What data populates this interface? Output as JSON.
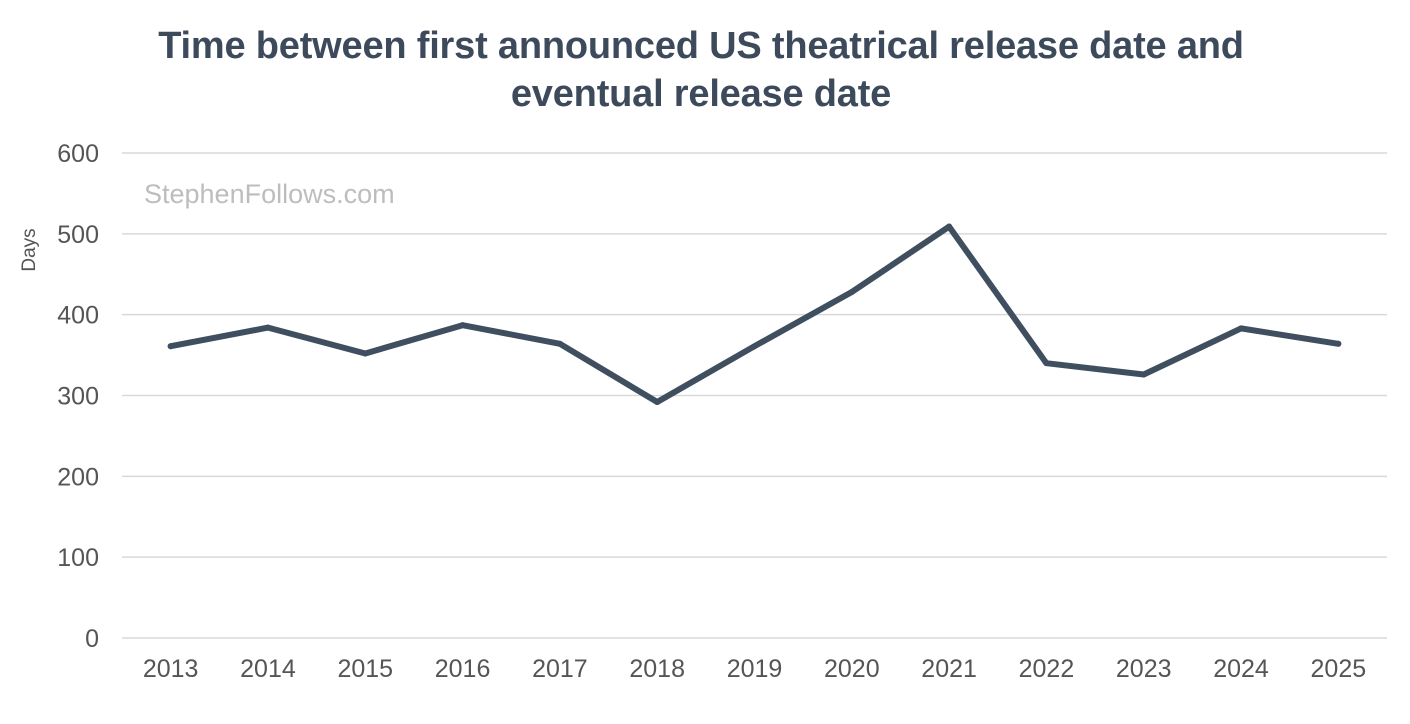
{
  "chart_data": {
    "type": "line",
    "title_lines": [
      "Time between first announced US theatrical release date and",
      "eventual release date"
    ],
    "xlabel": "",
    "ylabel": "Days",
    "categories": [
      "2013",
      "2014",
      "2015",
      "2016",
      "2017",
      "2018",
      "2019",
      "2020",
      "2021",
      "2022",
      "2023",
      "2024",
      "2025"
    ],
    "series": [
      {
        "name": "Days",
        "color": "#3f4f5f",
        "values": [
          361,
          384,
          352,
          387,
          364,
          292,
          361,
          428,
          509,
          340,
          326,
          383,
          364
        ]
      }
    ],
    "ylim": [
      0,
      600
    ],
    "yticks": [
      "0",
      "100",
      "200",
      "300",
      "400",
      "500",
      "600"
    ],
    "grid": true,
    "legend": "none",
    "watermark": "StephenFollows.com"
  }
}
